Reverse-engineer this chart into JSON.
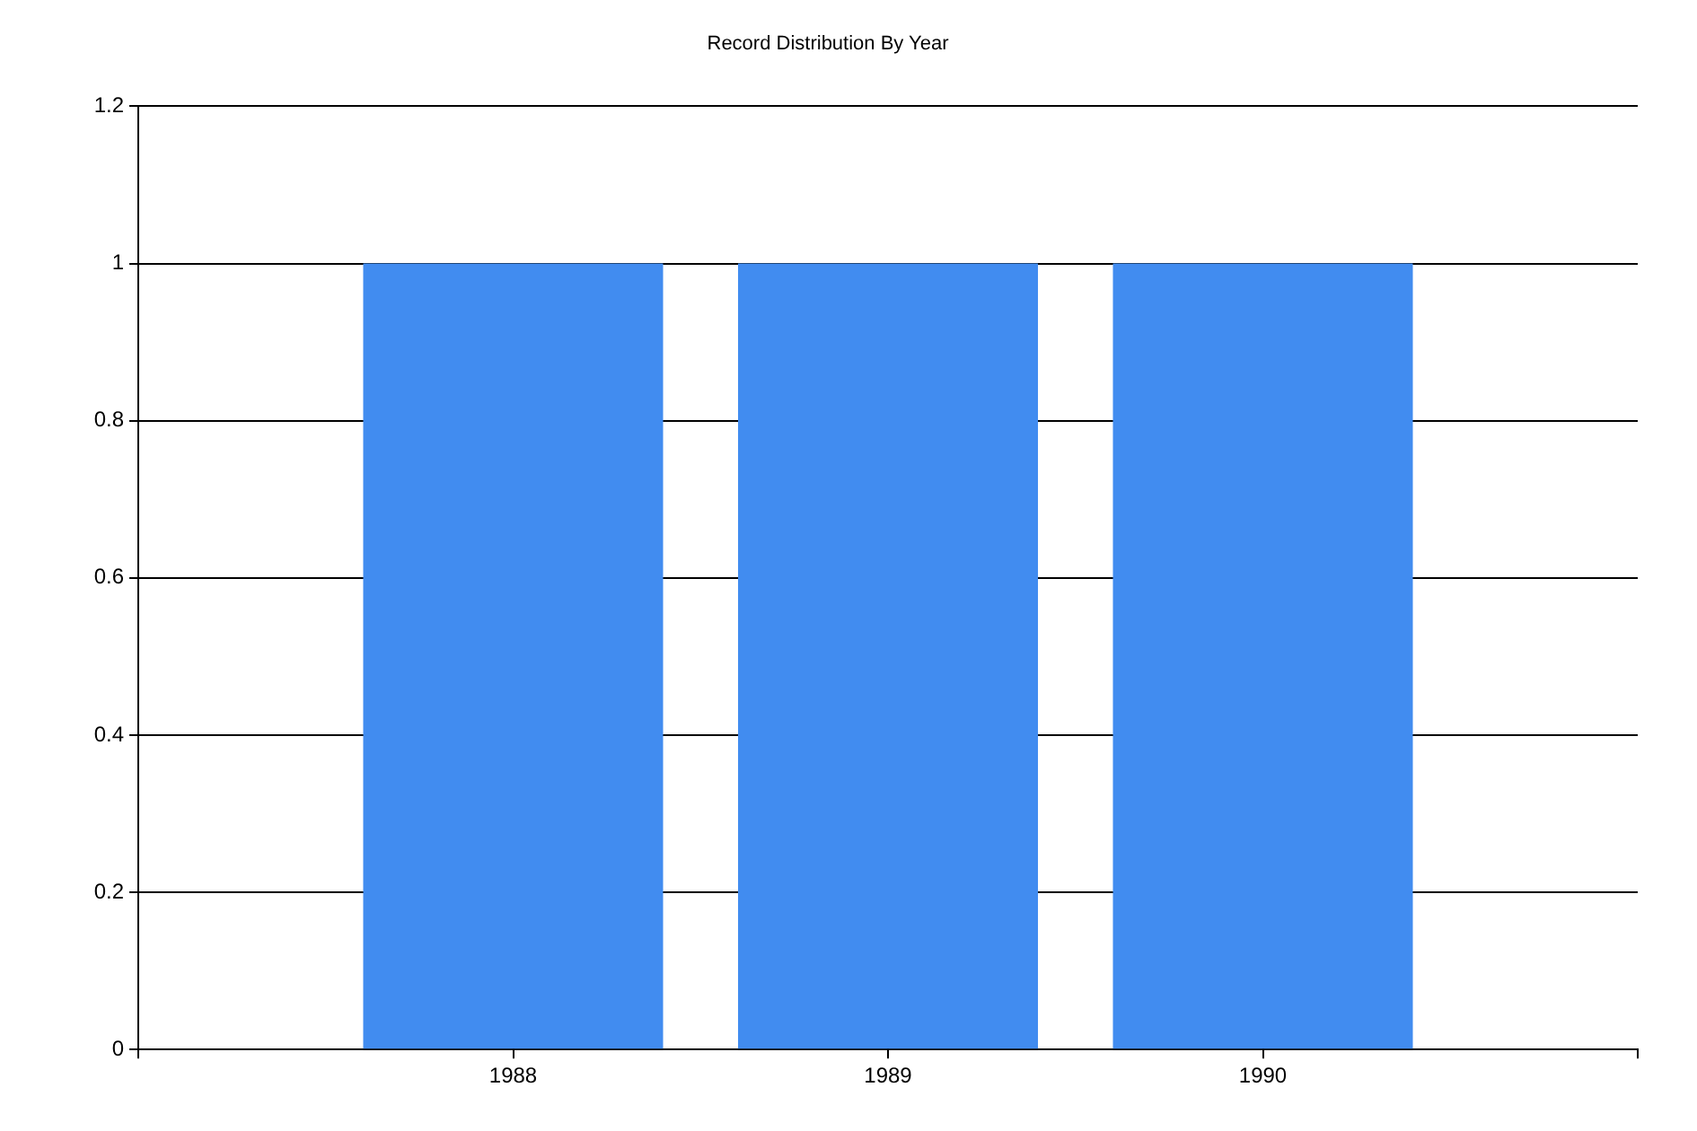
{
  "chart_data": {
    "type": "bar",
    "title": "Record Distribution By Year",
    "x": [
      1988,
      1989,
      1990
    ],
    "values": [
      1,
      1,
      1
    ],
    "color": "#418cf0",
    "xlim": [
      1987,
      1991
    ],
    "xticks": [
      {
        "value": 1987,
        "label": null
      },
      1988,
      1989,
      1990,
      {
        "value": 1991,
        "label": null
      }
    ],
    "ylim": [
      0,
      1.2
    ],
    "yticks": [
      0,
      0.2,
      0.4,
      0.6,
      0.8,
      1,
      1.2
    ],
    "grid": "y",
    "legend": false
  }
}
